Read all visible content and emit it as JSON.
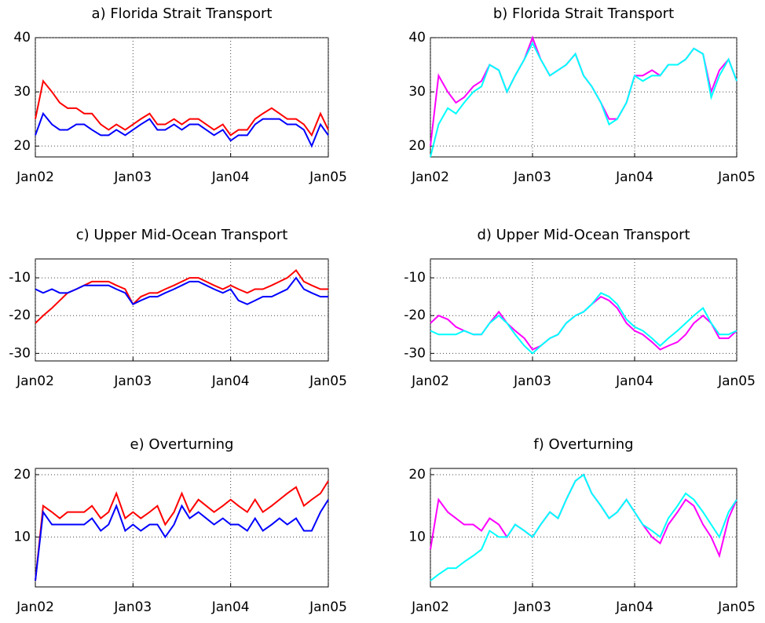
{
  "chart_data": [
    {
      "type": "line",
      "title": "a) Florida Strait Transport",
      "x": [
        2002,
        2002.08,
        2002.17,
        2002.25,
        2002.33,
        2002.42,
        2002.5,
        2002.58,
        2002.67,
        2002.75,
        2002.83,
        2002.92,
        2003,
        2003.08,
        2003.17,
        2003.25,
        2003.33,
        2003.42,
        2003.5,
        2003.58,
        2003.67,
        2003.75,
        2003.83,
        2003.92,
        2004,
        2004.08,
        2004.17,
        2004.25,
        2004.33,
        2004.42,
        2004.5,
        2004.58,
        2004.67,
        2004.75,
        2004.83,
        2004.92,
        2005
      ],
      "xlim": [
        2002,
        2005
      ],
      "xticks": [
        {
          "value": 2002,
          "label": "Jan02"
        },
        {
          "value": 2003,
          "label": "Jan03"
        },
        {
          "value": 2004,
          "label": "Jan04"
        },
        {
          "value": 2005,
          "label": "Jan05"
        }
      ],
      "ylim": [
        18,
        40
      ],
      "yticks": [
        20,
        30,
        40
      ],
      "grid": true,
      "series": [
        {
          "color": "#ff0000",
          "values": [
            25,
            32,
            30,
            28,
            27,
            27,
            26,
            26,
            24,
            23,
            24,
            23,
            24,
            25,
            26,
            24,
            24,
            25,
            24,
            25,
            25,
            24,
            23,
            24,
            22,
            23,
            23,
            25,
            26,
            27,
            26,
            25,
            25,
            24,
            22,
            26,
            23
          ]
        },
        {
          "color": "#0000ff",
          "values": [
            22,
            26,
            24,
            23,
            23,
            24,
            24,
            23,
            22,
            22,
            23,
            22,
            23,
            24,
            25,
            23,
            23,
            24,
            23,
            24,
            24,
            23,
            22,
            23,
            21,
            22,
            22,
            24,
            25,
            25,
            25,
            24,
            24,
            23,
            20,
            24,
            22
          ]
        }
      ]
    },
    {
      "type": "line",
      "title": "b) Florida Strait Transport",
      "x": [
        2002,
        2002.08,
        2002.17,
        2002.25,
        2002.33,
        2002.42,
        2002.5,
        2002.58,
        2002.67,
        2002.75,
        2002.83,
        2002.92,
        2003,
        2003.08,
        2003.17,
        2003.25,
        2003.33,
        2003.42,
        2003.5,
        2003.58,
        2003.67,
        2003.75,
        2003.83,
        2003.92,
        2004,
        2004.08,
        2004.17,
        2004.25,
        2004.33,
        2004.42,
        2004.5,
        2004.58,
        2004.67,
        2004.75,
        2004.83,
        2004.92,
        2005
      ],
      "xlim": [
        2002,
        2005
      ],
      "xticks": [
        {
          "value": 2002,
          "label": "Jan02"
        },
        {
          "value": 2003,
          "label": "Jan03"
        },
        {
          "value": 2004,
          "label": "Jan04"
        },
        {
          "value": 2005,
          "label": "Jan05"
        }
      ],
      "ylim": [
        18,
        40
      ],
      "yticks": [
        20,
        30,
        40
      ],
      "grid": true,
      "series": [
        {
          "color": "#ff00ff",
          "values": [
            20,
            33,
            30,
            28,
            29,
            31,
            32,
            35,
            34,
            30,
            33,
            36,
            40,
            36,
            33,
            34,
            35,
            37,
            33,
            31,
            28,
            25,
            25,
            28,
            33,
            33,
            34,
            33,
            35,
            35,
            36,
            38,
            37,
            30,
            34,
            36,
            32
          ]
        },
        {
          "color": "#00ffff",
          "values": [
            18,
            24,
            27,
            26,
            28,
            30,
            31,
            35,
            34,
            30,
            33,
            36,
            39,
            36,
            33,
            34,
            35,
            37,
            33,
            31,
            28,
            24,
            25,
            28,
            33,
            32,
            33,
            33,
            35,
            35,
            36,
            38,
            37,
            29,
            33,
            36,
            32
          ]
        }
      ]
    },
    {
      "type": "line",
      "title": "c) Upper Mid-Ocean Transport",
      "x": [
        2002,
        2002.08,
        2002.17,
        2002.25,
        2002.33,
        2002.42,
        2002.5,
        2002.58,
        2002.67,
        2002.75,
        2002.83,
        2002.92,
        2003,
        2003.08,
        2003.17,
        2003.25,
        2003.33,
        2003.42,
        2003.5,
        2003.58,
        2003.67,
        2003.75,
        2003.83,
        2003.92,
        2004,
        2004.08,
        2004.17,
        2004.25,
        2004.33,
        2004.42,
        2004.5,
        2004.58,
        2004.67,
        2004.75,
        2004.83,
        2004.92,
        2005
      ],
      "xlim": [
        2002,
        2005
      ],
      "xticks": [
        {
          "value": 2002,
          "label": "Jan02"
        },
        {
          "value": 2003,
          "label": "Jan03"
        },
        {
          "value": 2004,
          "label": "Jan04"
        },
        {
          "value": 2005,
          "label": "Jan05"
        }
      ],
      "ylim": [
        -32,
        -5
      ],
      "yticks": [
        -30,
        -20,
        -10
      ],
      "grid": true,
      "series": [
        {
          "color": "#ff0000",
          "values": [
            -22,
            -20,
            -18,
            -16,
            -14,
            -13,
            -12,
            -11,
            -11,
            -11,
            -12,
            -13,
            -17,
            -15,
            -14,
            -14,
            -13,
            -12,
            -11,
            -10,
            -10,
            -11,
            -12,
            -13,
            -12,
            -13,
            -14,
            -13,
            -13,
            -12,
            -11,
            -10,
            -8,
            -11,
            -12,
            -13,
            -13
          ]
        },
        {
          "color": "#0000ff",
          "values": [
            -13,
            -14,
            -13,
            -14,
            -14,
            -13,
            -12,
            -12,
            -12,
            -12,
            -13,
            -14,
            -17,
            -16,
            -15,
            -15,
            -14,
            -13,
            -12,
            -11,
            -11,
            -12,
            -13,
            -14,
            -13,
            -16,
            -17,
            -16,
            -15,
            -15,
            -14,
            -13,
            -10,
            -13,
            -14,
            -15,
            -15
          ]
        }
      ]
    },
    {
      "type": "line",
      "title": "d) Upper Mid-Ocean Transport",
      "x": [
        2002,
        2002.08,
        2002.17,
        2002.25,
        2002.33,
        2002.42,
        2002.5,
        2002.58,
        2002.67,
        2002.75,
        2002.83,
        2002.92,
        2003,
        2003.08,
        2003.17,
        2003.25,
        2003.33,
        2003.42,
        2003.5,
        2003.58,
        2003.67,
        2003.75,
        2003.83,
        2003.92,
        2004,
        2004.08,
        2004.17,
        2004.25,
        2004.33,
        2004.42,
        2004.5,
        2004.58,
        2004.67,
        2004.75,
        2004.83,
        2004.92,
        2005
      ],
      "xlim": [
        2002,
        2005
      ],
      "xticks": [
        {
          "value": 2002,
          "label": "Jan02"
        },
        {
          "value": 2003,
          "label": "Jan03"
        },
        {
          "value": 2004,
          "label": "Jan04"
        },
        {
          "value": 2005,
          "label": "Jan05"
        }
      ],
      "ylim": [
        -32,
        -5
      ],
      "yticks": [
        -30,
        -20,
        -10
      ],
      "grid": true,
      "series": [
        {
          "color": "#ff00ff",
          "values": [
            -22,
            -20,
            -21,
            -23,
            -24,
            -25,
            -25,
            -22,
            -19,
            -22,
            -24,
            -26,
            -29,
            -28,
            -26,
            -25,
            -22,
            -20,
            -19,
            -17,
            -15,
            -16,
            -18,
            -22,
            -24,
            -25,
            -27,
            -29,
            -28,
            -27,
            -25,
            -22,
            -20,
            -22,
            -26,
            -26,
            -24
          ]
        },
        {
          "color": "#00ffff",
          "values": [
            -24,
            -25,
            -25,
            -25,
            -24,
            -25,
            -25,
            -22,
            -20,
            -22,
            -25,
            -28,
            -30,
            -28,
            -26,
            -25,
            -22,
            -20,
            -19,
            -17,
            -14,
            -15,
            -17,
            -21,
            -23,
            -24,
            -26,
            -28,
            -26,
            -24,
            -22,
            -20,
            -18,
            -22,
            -25,
            -25,
            -24
          ]
        }
      ]
    },
    {
      "type": "line",
      "title": "e) Overturning",
      "x": [
        2002,
        2002.08,
        2002.17,
        2002.25,
        2002.33,
        2002.42,
        2002.5,
        2002.58,
        2002.67,
        2002.75,
        2002.83,
        2002.92,
        2003,
        2003.08,
        2003.17,
        2003.25,
        2003.33,
        2003.42,
        2003.5,
        2003.58,
        2003.67,
        2003.75,
        2003.83,
        2003.92,
        2004,
        2004.08,
        2004.17,
        2004.25,
        2004.33,
        2004.42,
        2004.5,
        2004.58,
        2004.67,
        2004.75,
        2004.83,
        2004.92,
        2005
      ],
      "xlim": [
        2002,
        2005
      ],
      "xticks": [
        {
          "value": 2002,
          "label": "Jan02"
        },
        {
          "value": 2003,
          "label": "Jan03"
        },
        {
          "value": 2004,
          "label": "Jan04"
        },
        {
          "value": 2005,
          "label": "Jan05"
        }
      ],
      "ylim": [
        2,
        21
      ],
      "yticks": [
        10,
        20
      ],
      "grid": true,
      "series": [
        {
          "color": "#ff0000",
          "values": [
            3,
            15,
            14,
            13,
            14,
            14,
            14,
            15,
            13,
            14,
            17,
            13,
            14,
            13,
            14,
            15,
            12,
            14,
            17,
            14,
            16,
            15,
            14,
            15,
            16,
            15,
            14,
            16,
            14,
            15,
            16,
            17,
            18,
            15,
            16,
            17,
            19
          ]
        },
        {
          "color": "#0000ff",
          "values": [
            3,
            14,
            12,
            12,
            12,
            12,
            12,
            13,
            11,
            12,
            15,
            11,
            12,
            11,
            12,
            12,
            10,
            12,
            15,
            13,
            14,
            13,
            12,
            13,
            12,
            12,
            11,
            13,
            11,
            12,
            13,
            12,
            13,
            11,
            11,
            14,
            16
          ]
        }
      ]
    },
    {
      "type": "line",
      "title": "f) Overturning",
      "x": [
        2002,
        2002.08,
        2002.17,
        2002.25,
        2002.33,
        2002.42,
        2002.5,
        2002.58,
        2002.67,
        2002.75,
        2002.83,
        2002.92,
        2003,
        2003.08,
        2003.17,
        2003.25,
        2003.33,
        2003.42,
        2003.5,
        2003.58,
        2003.67,
        2003.75,
        2003.83,
        2003.92,
        2004,
        2004.08,
        2004.17,
        2004.25,
        2004.33,
        2004.42,
        2004.5,
        2004.58,
        2004.67,
        2004.75,
        2004.83,
        2004.92,
        2005
      ],
      "xlim": [
        2002,
        2005
      ],
      "xticks": [
        {
          "value": 2002,
          "label": "Jan02"
        },
        {
          "value": 2003,
          "label": "Jan03"
        },
        {
          "value": 2004,
          "label": "Jan04"
        },
        {
          "value": 2005,
          "label": "Jan05"
        }
      ],
      "ylim": [
        2,
        21
      ],
      "yticks": [
        10,
        20
      ],
      "grid": true,
      "series": [
        {
          "color": "#ff00ff",
          "values": [
            8,
            16,
            14,
            13,
            12,
            12,
            11,
            13,
            12,
            10,
            12,
            11,
            10,
            12,
            14,
            13,
            16,
            19,
            20,
            17,
            15,
            13,
            14,
            16,
            14,
            12,
            10,
            9,
            12,
            14,
            16,
            15,
            12,
            10,
            7,
            13,
            16
          ]
        },
        {
          "color": "#00ffff",
          "values": [
            3,
            4,
            5,
            5,
            6,
            7,
            8,
            11,
            10,
            10,
            12,
            11,
            10,
            12,
            14,
            13,
            16,
            19,
            20,
            17,
            15,
            13,
            14,
            16,
            14,
            12,
            11,
            10,
            13,
            15,
            17,
            16,
            14,
            12,
            10,
            14,
            16
          ]
        }
      ]
    }
  ]
}
